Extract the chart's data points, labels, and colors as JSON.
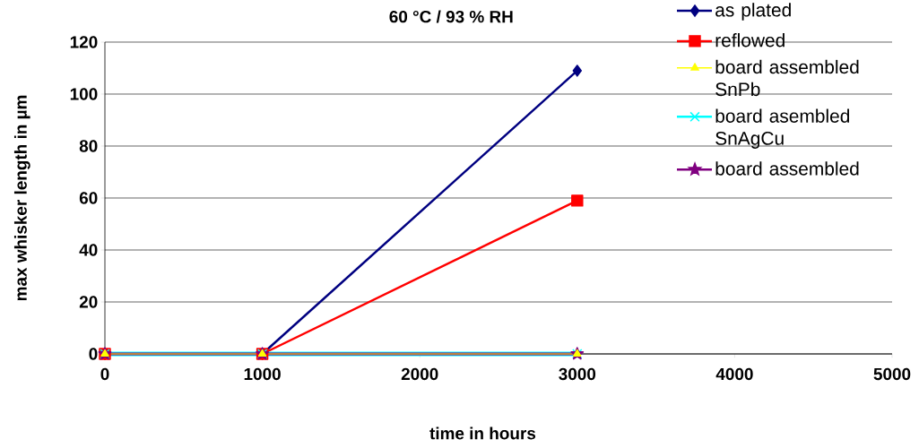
{
  "chart_data": {
    "type": "line",
    "title": "60 °C / 93 % RH",
    "xlabel": "time in hours",
    "ylabel": "max whisker length in µm",
    "x": [
      0,
      1000,
      3000
    ],
    "series": [
      {
        "name": "as plated",
        "color": "#000080",
        "marker": "diamond",
        "values": [
          0,
          0,
          109
        ]
      },
      {
        "name": "reflowed",
        "color": "#ff0000",
        "marker": "square",
        "values": [
          0,
          0,
          59
        ]
      },
      {
        "name": "board assembled SnPb",
        "color": "#ffff00",
        "marker": "triangle",
        "values": [
          0,
          0,
          0
        ]
      },
      {
        "name": "board asembled SnAgCu",
        "color": "#00ffff",
        "marker": "cross",
        "values": [
          0,
          0,
          0
        ]
      },
      {
        "name": "board assembled",
        "color": "#800080",
        "marker": "star",
        "values": [
          0,
          0,
          0
        ]
      }
    ],
    "xlim": [
      0,
      5000
    ],
    "xticks": [
      0,
      1000,
      2000,
      3000,
      4000,
      5000
    ],
    "ylim": [
      0,
      120
    ],
    "yticks": [
      0,
      20,
      40,
      60,
      80,
      100,
      120
    ],
    "grid": "y",
    "legend": "top right"
  }
}
